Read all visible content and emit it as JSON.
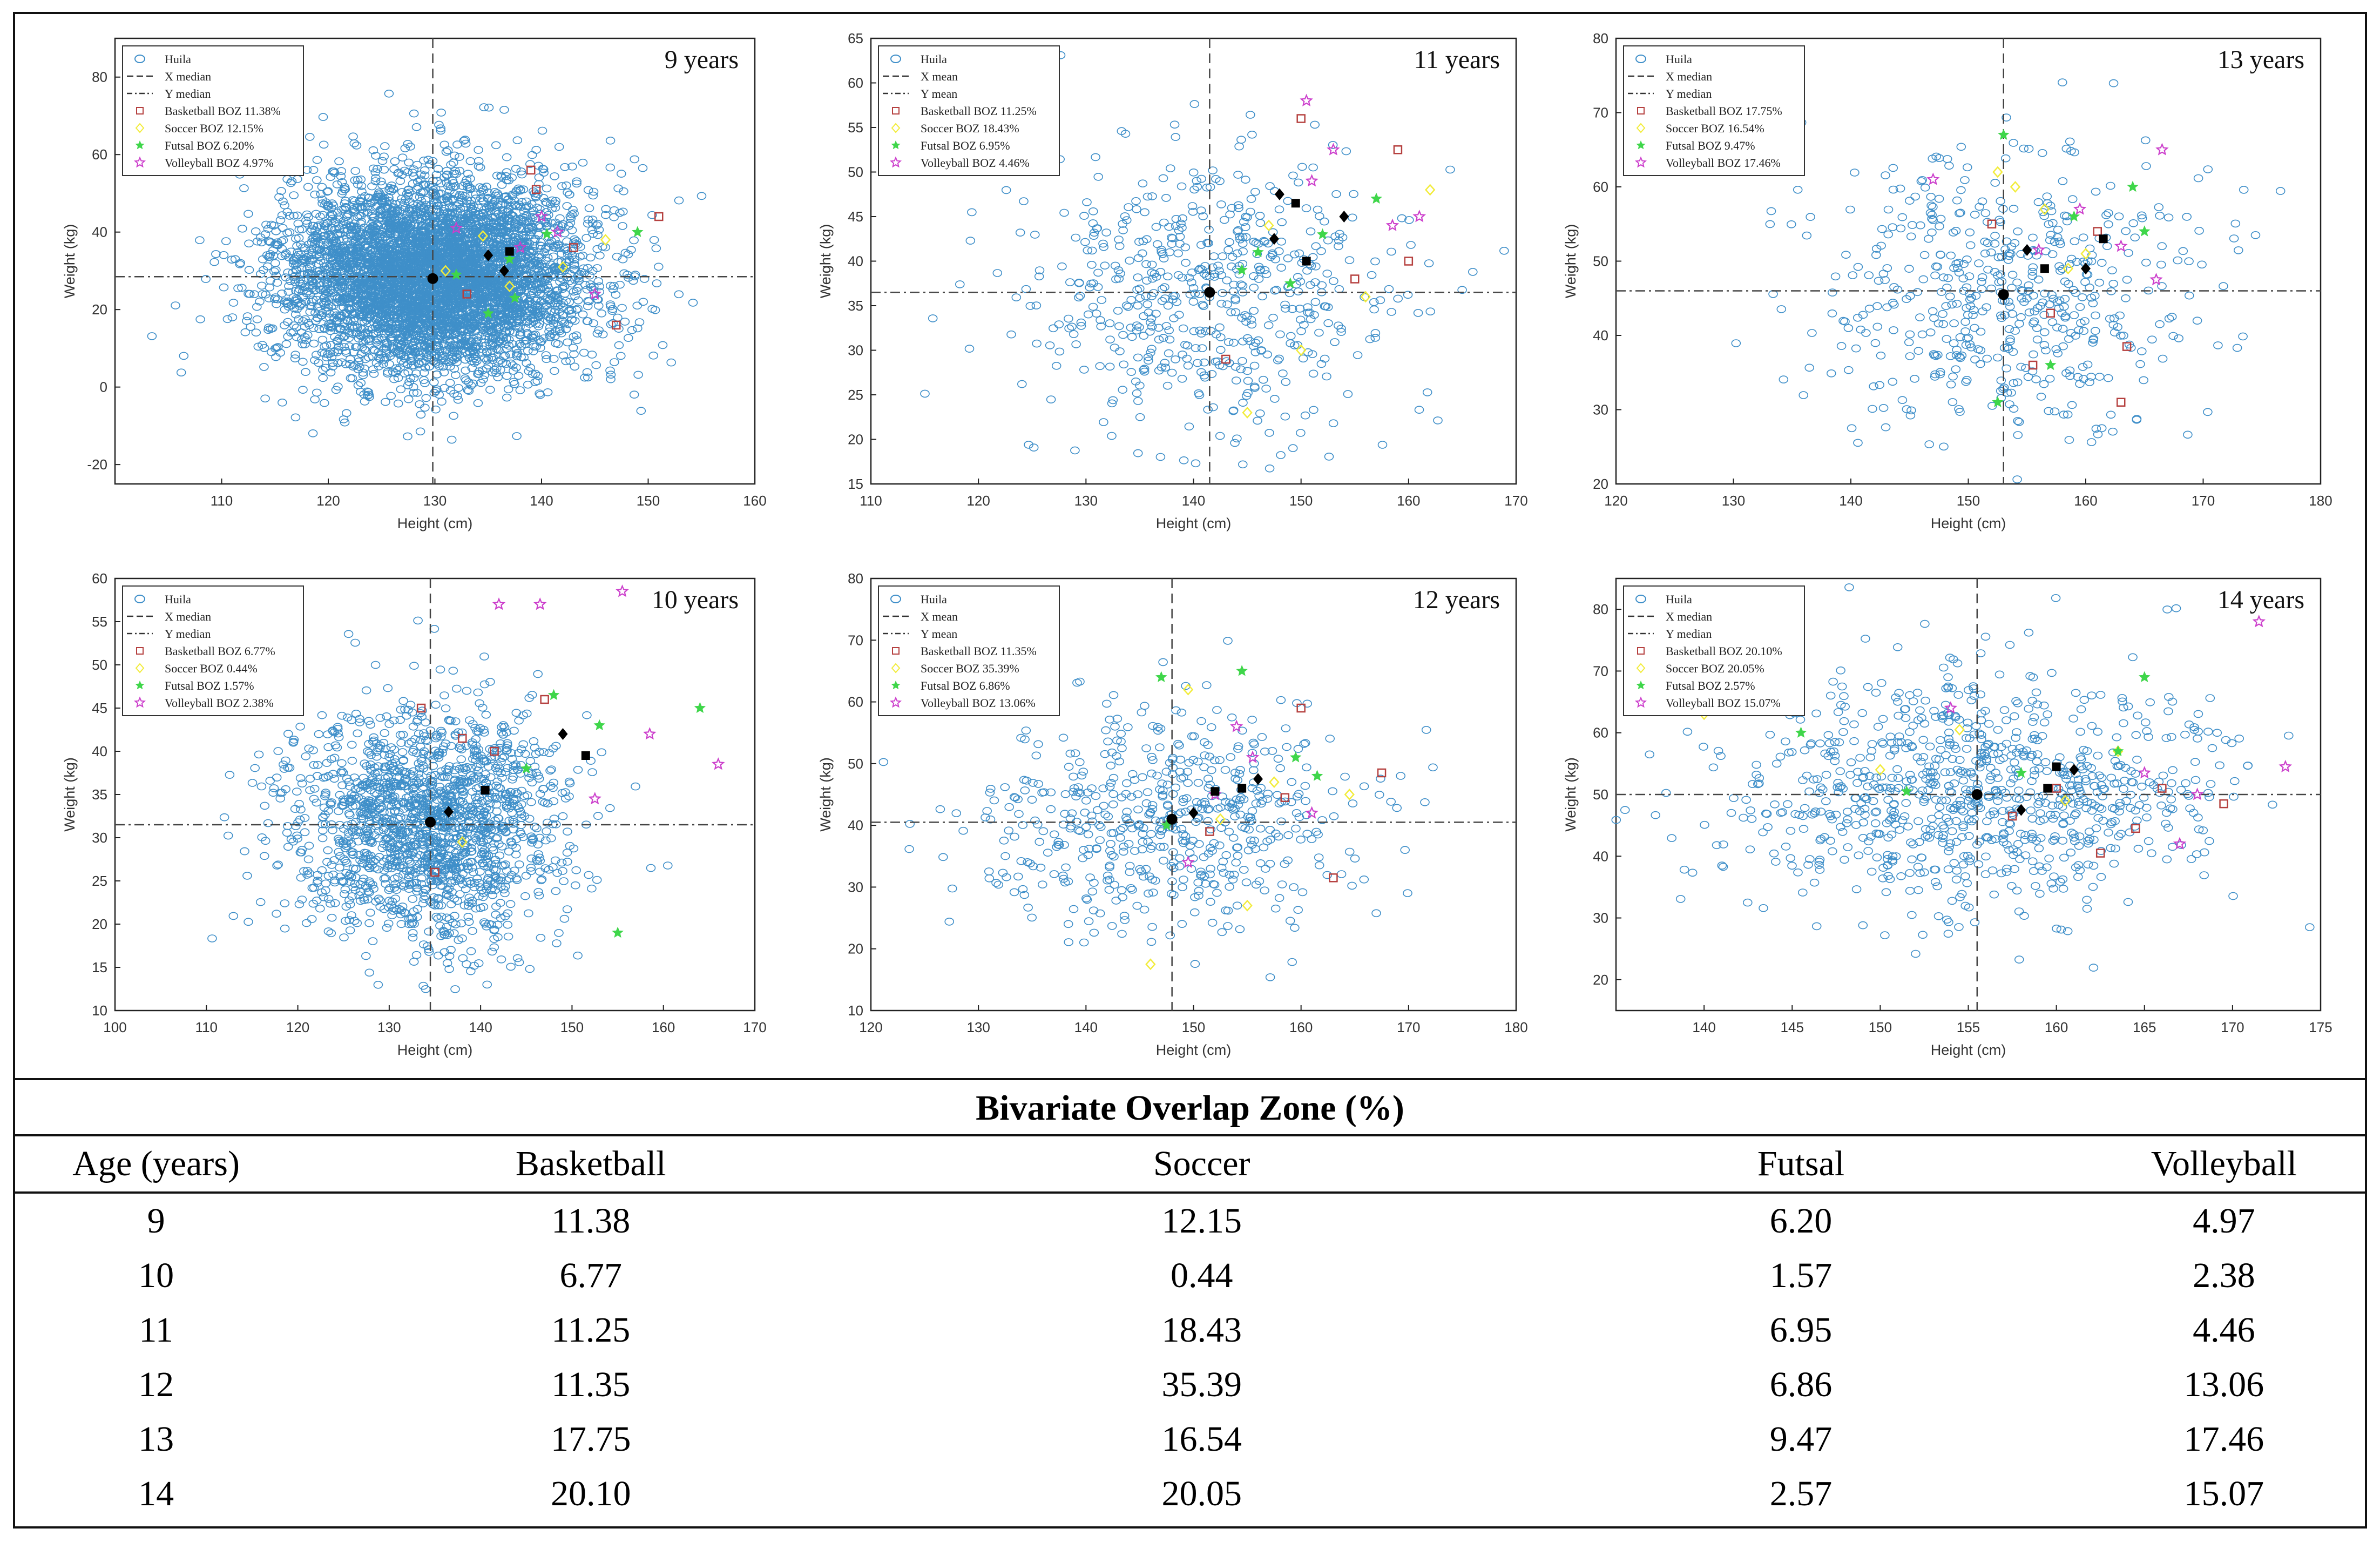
{
  "chart_data": [
    {
      "type": "scatter",
      "title": "9 years",
      "xlabel": "Height (cm)",
      "ylabel": "Weight (kg)",
      "xlim": [
        100,
        160
      ],
      "ylim": [
        -25,
        90
      ],
      "xticks": [
        110,
        120,
        130,
        140,
        150,
        160
      ],
      "yticks": [
        -20,
        0,
        20,
        40,
        60,
        80
      ],
      "ref_x": 129.8,
      "ref_y": 28.5,
      "population": {
        "name": "Huila",
        "count": 5200,
        "cx": 129.8,
        "cy": 28.5,
        "sx": 7.0,
        "sy": 12.5
      },
      "legend": [
        "Huila",
        "X median",
        "Y median",
        "Basketball BOZ 11.38%",
        "Soccer BOZ 12.15%",
        "Futsal BOZ 6.20%",
        "Volleyball BOZ 4.97%"
      ],
      "legend_position": "top-left",
      "sport_points": [
        {
          "sport": "Basketball",
          "points": [
            [
              139.0,
              56.0
            ],
            [
              151.0,
              44.0
            ],
            [
              139.5,
              51.0
            ],
            [
              147.0,
              16.0
            ],
            [
              133.0,
              24.0
            ],
            [
              143.0,
              36.0
            ]
          ]
        },
        {
          "sport": "Soccer",
          "points": [
            [
              146.0,
              38.0
            ],
            [
              131.0,
              30.0
            ],
            [
              137.0,
              26.0
            ],
            [
              142.0,
              31.0
            ],
            [
              134.5,
              39.0
            ]
          ]
        },
        {
          "sport": "Futsal",
          "points": [
            [
              137.0,
              33.0
            ],
            [
              149.0,
              40.0
            ],
            [
              132.0,
              29.0
            ],
            [
              135.0,
              19.0
            ],
            [
              140.5,
              39.5
            ],
            [
              137.5,
              23.0
            ]
          ]
        },
        {
          "sport": "Volleyball",
          "points": [
            [
              132.0,
              41.0
            ],
            [
              140.0,
              44.0
            ],
            [
              141.5,
              40.0
            ],
            [
              145.0,
              24.0
            ],
            [
              138.0,
              36.0
            ]
          ]
        }
      ],
      "summary_points": [
        [
          129.8,
          28.0
        ],
        [
          135.0,
          34.0
        ],
        [
          137.0,
          35.0
        ],
        [
          136.5,
          30.0
        ]
      ]
    },
    {
      "type": "scatter",
      "title": "11 years",
      "xlabel": "Height (cm)",
      "ylabel": "Weight (kg)",
      "xlim": [
        110,
        170
      ],
      "ylim": [
        15,
        65
      ],
      "xticks": [
        110,
        120,
        130,
        140,
        150,
        160,
        170
      ],
      "yticks": [
        15,
        20,
        25,
        30,
        35,
        40,
        45,
        50,
        55,
        60,
        65
      ],
      "ref_x": 141.5,
      "ref_y": 36.5,
      "population": {
        "name": "Huila",
        "count": 560,
        "cx": 141.5,
        "cy": 36.5,
        "sx": 8.5,
        "sy": 8.0
      },
      "legend": [
        "Huila",
        "X mean",
        "Y mean",
        "Basketball BOZ 11.25%",
        "Soccer BOZ 18.43%",
        "Futsal BOZ 6.95%",
        "Volleyball BOZ 4.46%"
      ],
      "legend_position": "top-left",
      "sport_points": [
        {
          "sport": "Basketball",
          "points": [
            [
              150.0,
              56.0
            ],
            [
              159.0,
              52.5
            ],
            [
              143.0,
              29.0
            ],
            [
              160.0,
              40.0
            ],
            [
              155.0,
              38.0
            ]
          ]
        },
        {
          "sport": "Soccer",
          "points": [
            [
              162.0,
              48.0
            ],
            [
              147.0,
              44.0
            ],
            [
              150.0,
              30.0
            ],
            [
              145.0,
              23.0
            ],
            [
              156.0,
              36.0
            ]
          ]
        },
        {
          "sport": "Futsal",
          "points": [
            [
              146.0,
              41.0
            ],
            [
              152.0,
              43.0
            ],
            [
              149.0,
              37.5
            ],
            [
              144.5,
              39.0
            ],
            [
              157.0,
              47.0
            ]
          ]
        },
        {
          "sport": "Volleyball",
          "points": [
            [
              150.5,
              58.0
            ],
            [
              153.0,
              52.5
            ],
            [
              161.0,
              45.0
            ],
            [
              151.0,
              49.0
            ],
            [
              158.5,
              44.0
            ]
          ]
        }
      ],
      "summary_points": [
        [
          141.5,
          36.5
        ],
        [
          147.5,
          42.5
        ],
        [
          149.5,
          46.5
        ],
        [
          154.0,
          45.0
        ],
        [
          150.5,
          40.0
        ],
        [
          148.0,
          47.5
        ]
      ]
    },
    {
      "type": "scatter",
      "title": "13 years",
      "xlabel": "Height (cm)",
      "ylabel": "Weight (kg)",
      "xlim": [
        120,
        180
      ],
      "ylim": [
        20,
        80
      ],
      "xticks": [
        120,
        130,
        140,
        150,
        160,
        170,
        180
      ],
      "yticks": [
        20,
        30,
        40,
        50,
        60,
        70,
        80
      ],
      "ref_x": 153.0,
      "ref_y": 46.0,
      "population": {
        "name": "Huila",
        "count": 520,
        "cx": 153.0,
        "cy": 46.0,
        "sx": 8.0,
        "sy": 9.5
      },
      "legend": [
        "Huila",
        "X median",
        "Y median",
        "Basketball BOZ 17.75%",
        "Soccer BOZ 16.54%",
        "Futsal BOZ 9.47%",
        "Volleyball BOZ 17.46%"
      ],
      "legend_position": "top-left",
      "sport_points": [
        {
          "sport": "Basketball",
          "points": [
            [
              163.5,
              38.5
            ],
            [
              155.5,
              36.0
            ],
            [
              163.0,
              31.0
            ],
            [
              152.0,
              55.0
            ],
            [
              161.0,
              54.0
            ],
            [
              157.0,
              43.0
            ]
          ]
        },
        {
          "sport": "Soccer",
          "points": [
            [
              154.0,
              60.0
            ],
            [
              156.5,
              57.0
            ],
            [
              158.5,
              49.0
            ],
            [
              152.5,
              62.0
            ],
            [
              160.0,
              51.0
            ]
          ]
        },
        {
          "sport": "Futsal",
          "points": [
            [
              153.0,
              67.0
            ],
            [
              164.0,
              60.0
            ],
            [
              157.0,
              36.0
            ],
            [
              152.5,
              31.0
            ],
            [
              159.0,
              56.0
            ],
            [
              165.0,
              54.0
            ]
          ]
        },
        {
          "sport": "Volleyball",
          "points": [
            [
              159.5,
              57.0
            ],
            [
              166.5,
              65.0
            ],
            [
              166.0,
              47.5
            ],
            [
              147.0,
              61.0
            ],
            [
              156.0,
              51.5
            ],
            [
              163.0,
              52.0
            ]
          ]
        }
      ],
      "summary_points": [
        [
          153.0,
          45.5
        ],
        [
          155.0,
          51.5
        ],
        [
          156.5,
          49.0
        ],
        [
          160.0,
          49.0
        ],
        [
          161.5,
          53.0
        ]
      ]
    },
    {
      "type": "scatter",
      "title": "10 years",
      "xlabel": "Height (cm)",
      "ylabel": "Weight (kg)",
      "xlim": [
        100,
        170
      ],
      "ylim": [
        10,
        60
      ],
      "xticks": [
        100,
        110,
        120,
        130,
        140,
        150,
        160,
        170
      ],
      "yticks": [
        10,
        15,
        20,
        25,
        30,
        35,
        40,
        45,
        50,
        55,
        60
      ],
      "ref_x": 134.5,
      "ref_y": 31.5,
      "population": {
        "name": "Huila",
        "count": 1700,
        "cx": 134.5,
        "cy": 31.5,
        "sx": 7.5,
        "sy": 7.0
      },
      "legend": [
        "Huila",
        "X median",
        "Y median",
        "Basketball BOZ 6.77%",
        "Soccer BOZ 0.44%",
        "Futsal BOZ 1.57%",
        "Volleyball BOZ 2.38%"
      ],
      "legend_position": "top-left",
      "sport_points": [
        {
          "sport": "Basketball",
          "points": [
            [
              147.0,
              46.0
            ],
            [
              138.0,
              41.5
            ],
            [
              133.5,
              45.0
            ],
            [
              141.5,
              40.0
            ],
            [
              135.0,
              26.0
            ]
          ]
        },
        {
          "sport": "Soccer",
          "points": [
            [
              138.0,
              29.5
            ]
          ]
        },
        {
          "sport": "Futsal",
          "points": [
            [
              164.0,
              45.0
            ],
            [
              153.0,
              43.0
            ],
            [
              155.0,
              19.0
            ],
            [
              148.0,
              46.5
            ],
            [
              145.0,
              38.0
            ]
          ]
        },
        {
          "sport": "Volleyball",
          "points": [
            [
              142.0,
              57.0
            ],
            [
              146.5,
              57.0
            ],
            [
              155.5,
              58.5
            ],
            [
              166.0,
              38.5
            ],
            [
              158.5,
              42.0
            ],
            [
              152.5,
              34.5
            ]
          ]
        }
      ],
      "summary_points": [
        [
          134.5,
          31.8
        ],
        [
          136.5,
          33.0
        ],
        [
          140.5,
          35.5
        ],
        [
          149.0,
          42.0
        ],
        [
          151.5,
          39.5
        ]
      ]
    },
    {
      "type": "scatter",
      "title": "12 years",
      "xlabel": "Height (cm)",
      "ylabel": "Weight (kg)",
      "xlim": [
        120,
        180
      ],
      "ylim": [
        10,
        80
      ],
      "xticks": [
        120,
        130,
        140,
        150,
        160,
        170,
        180
      ],
      "yticks": [
        10,
        20,
        30,
        40,
        50,
        60,
        70,
        80
      ],
      "ref_x": 148.0,
      "ref_y": 40.5,
      "population": {
        "name": "Huila",
        "count": 560,
        "cx": 148.0,
        "cy": 40.5,
        "sx": 9.0,
        "sy": 9.0
      },
      "legend": [
        "Huila",
        "X mean",
        "Y mean",
        "Basketball BOZ 11.35%",
        "Soccer BOZ 35.39%",
        "Futsal BOZ 6.86%",
        "Volleyball BOZ 13.06%"
      ],
      "legend_position": "top-left",
      "sport_points": [
        {
          "sport": "Basketball",
          "points": [
            [
              160.0,
              59.0
            ],
            [
              167.5,
              48.5
            ],
            [
              163.0,
              31.5
            ],
            [
              151.5,
              39.0
            ],
            [
              158.5,
              44.5
            ]
          ]
        },
        {
          "sport": "Soccer",
          "points": [
            [
              149.5,
              62.0
            ],
            [
              146.0,
              17.5
            ],
            [
              155.0,
              27.0
            ],
            [
              164.5,
              45.0
            ],
            [
              157.5,
              47.0
            ],
            [
              152.5,
              41.0
            ]
          ]
        },
        {
          "sport": "Futsal",
          "points": [
            [
              147.0,
              64.0
            ],
            [
              154.5,
              65.0
            ],
            [
              161.5,
              48.0
            ],
            [
              159.5,
              51.0
            ],
            [
              147.5,
              40.0
            ]
          ]
        },
        {
          "sport": "Volleyball",
          "points": [
            [
              154.0,
              56.0
            ],
            [
              155.5,
              51.0
            ],
            [
              161.0,
              42.0
            ],
            [
              149.5,
              34.0
            ],
            [
              152.0,
              45.0
            ]
          ]
        }
      ],
      "summary_points": [
        [
          148.0,
          41.0
        ],
        [
          150.0,
          42.0
        ],
        [
          152.0,
          45.5
        ],
        [
          156.0,
          47.5
        ],
        [
          154.5,
          46.0
        ]
      ]
    },
    {
      "type": "scatter",
      "title": "14 years",
      "xlabel": "Height (cm)",
      "ylabel": "Weight (kg)",
      "xlim": [
        135,
        175
      ],
      "ylim": [
        15,
        85
      ],
      "xticks": [
        140,
        145,
        150,
        155,
        160,
        165,
        170,
        175
      ],
      "yticks": [
        20,
        30,
        40,
        50,
        60,
        70,
        80
      ],
      "ref_x": 155.5,
      "ref_y": 50.0,
      "population": {
        "name": "Huila",
        "count": 900,
        "cx": 155.5,
        "cy": 50.0,
        "sx": 7.0,
        "sy": 9.5
      },
      "legend": [
        "Huila",
        "X median",
        "Y median",
        "Basketball BOZ 20.10%",
        "Soccer BOZ 20.05%",
        "Futsal BOZ 2.57%",
        "Volleyball BOZ 15.07%"
      ],
      "legend_position": "top-left",
      "sport_points": [
        {
          "sport": "Basketball",
          "points": [
            [
              169.5,
              48.5
            ],
            [
              160.0,
              51.0
            ],
            [
              164.5,
              44.5
            ],
            [
              162.5,
              40.5
            ],
            [
              157.5,
              46.5
            ],
            [
              166.0,
              51.0
            ]
          ]
        },
        {
          "sport": "Soccer",
          "points": [
            [
              140.0,
              63.0
            ],
            [
              154.5,
              60.5
            ],
            [
              150.0,
              54.0
            ],
            [
              160.5,
              49.0
            ],
            [
              163.5,
              57.0
            ]
          ]
        },
        {
          "sport": "Futsal",
          "points": [
            [
              165.0,
              69.0
            ],
            [
              151.5,
              50.5
            ],
            [
              158.0,
              53.5
            ],
            [
              163.5,
              57.0
            ],
            [
              145.5,
              60.0
            ]
          ]
        },
        {
          "sport": "Volleyball",
          "points": [
            [
              171.5,
              78.0
            ],
            [
              173.0,
              54.5
            ],
            [
              168.0,
              50.0
            ],
            [
              165.0,
              53.5
            ],
            [
              154.0,
              64.0
            ],
            [
              167.0,
              42.0
            ]
          ]
        }
      ],
      "summary_points": [
        [
          155.5,
          50.0
        ],
        [
          158.0,
          47.5
        ],
        [
          159.5,
          51.0
        ],
        [
          161.0,
          54.0
        ],
        [
          160.0,
          54.5
        ]
      ]
    },
    {
      "type": "table",
      "title": "Bivariate Overlap Zone (%)",
      "columns": [
        "Age (years)",
        "Basketball",
        "Soccer",
        "Futsal",
        "Volleyball"
      ],
      "rows": [
        [
          "9",
          "11.38",
          "12.15",
          "6.20",
          "4.97"
        ],
        [
          "10",
          "6.77",
          "0.44",
          "1.57",
          "2.38"
        ],
        [
          "11",
          "11.25",
          "18.43",
          "6.95",
          "4.46"
        ],
        [
          "12",
          "11.35",
          "35.39",
          "6.86",
          "13.06"
        ],
        [
          "13",
          "17.75",
          "16.54",
          "9.47",
          "17.46"
        ],
        [
          "14",
          "20.10",
          "20.05",
          "2.57",
          "15.07"
        ]
      ]
    }
  ],
  "colors": {
    "population": "#3f8fc9",
    "basketball": "#b5403f",
    "soccer": "#f2ec3a",
    "futsal": "#3fd64a",
    "volleyball": "#cc3fcc",
    "summary": "#000000"
  }
}
